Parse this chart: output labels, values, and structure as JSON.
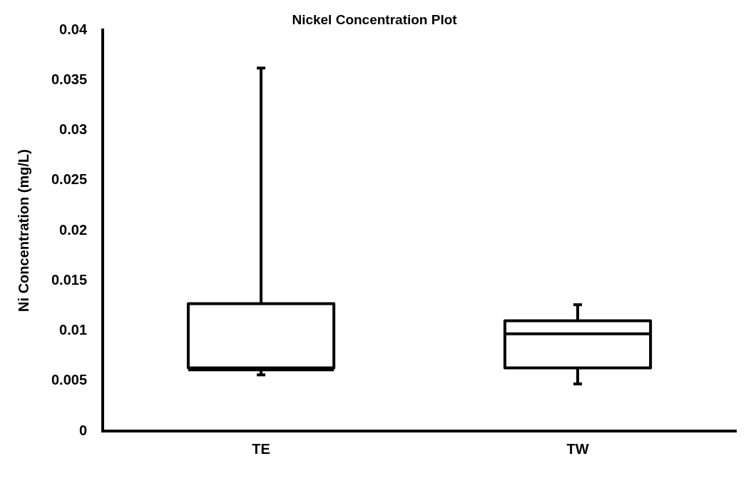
{
  "chart_data": {
    "type": "box",
    "title": "Nickel Concentration Plot",
    "ylabel": "Ni Concentration (mg/L)",
    "categories": [
      "TE",
      "TW"
    ],
    "boxes": [
      {
        "low": 0.0056,
        "q1": 0.0063,
        "median": 0.0061,
        "q3": 0.0127,
        "high": 0.0362
      },
      {
        "low": 0.0047,
        "q1": 0.0063,
        "median": 0.0097,
        "q3": 0.011,
        "high": 0.0126
      }
    ],
    "color": "#000000",
    "ylim": [
      0,
      0.04
    ],
    "yticks": [
      0,
      0.005,
      0.01,
      0.015,
      0.02,
      0.025,
      0.03,
      0.035,
      0.04
    ],
    "grid": false,
    "legend": false
  }
}
